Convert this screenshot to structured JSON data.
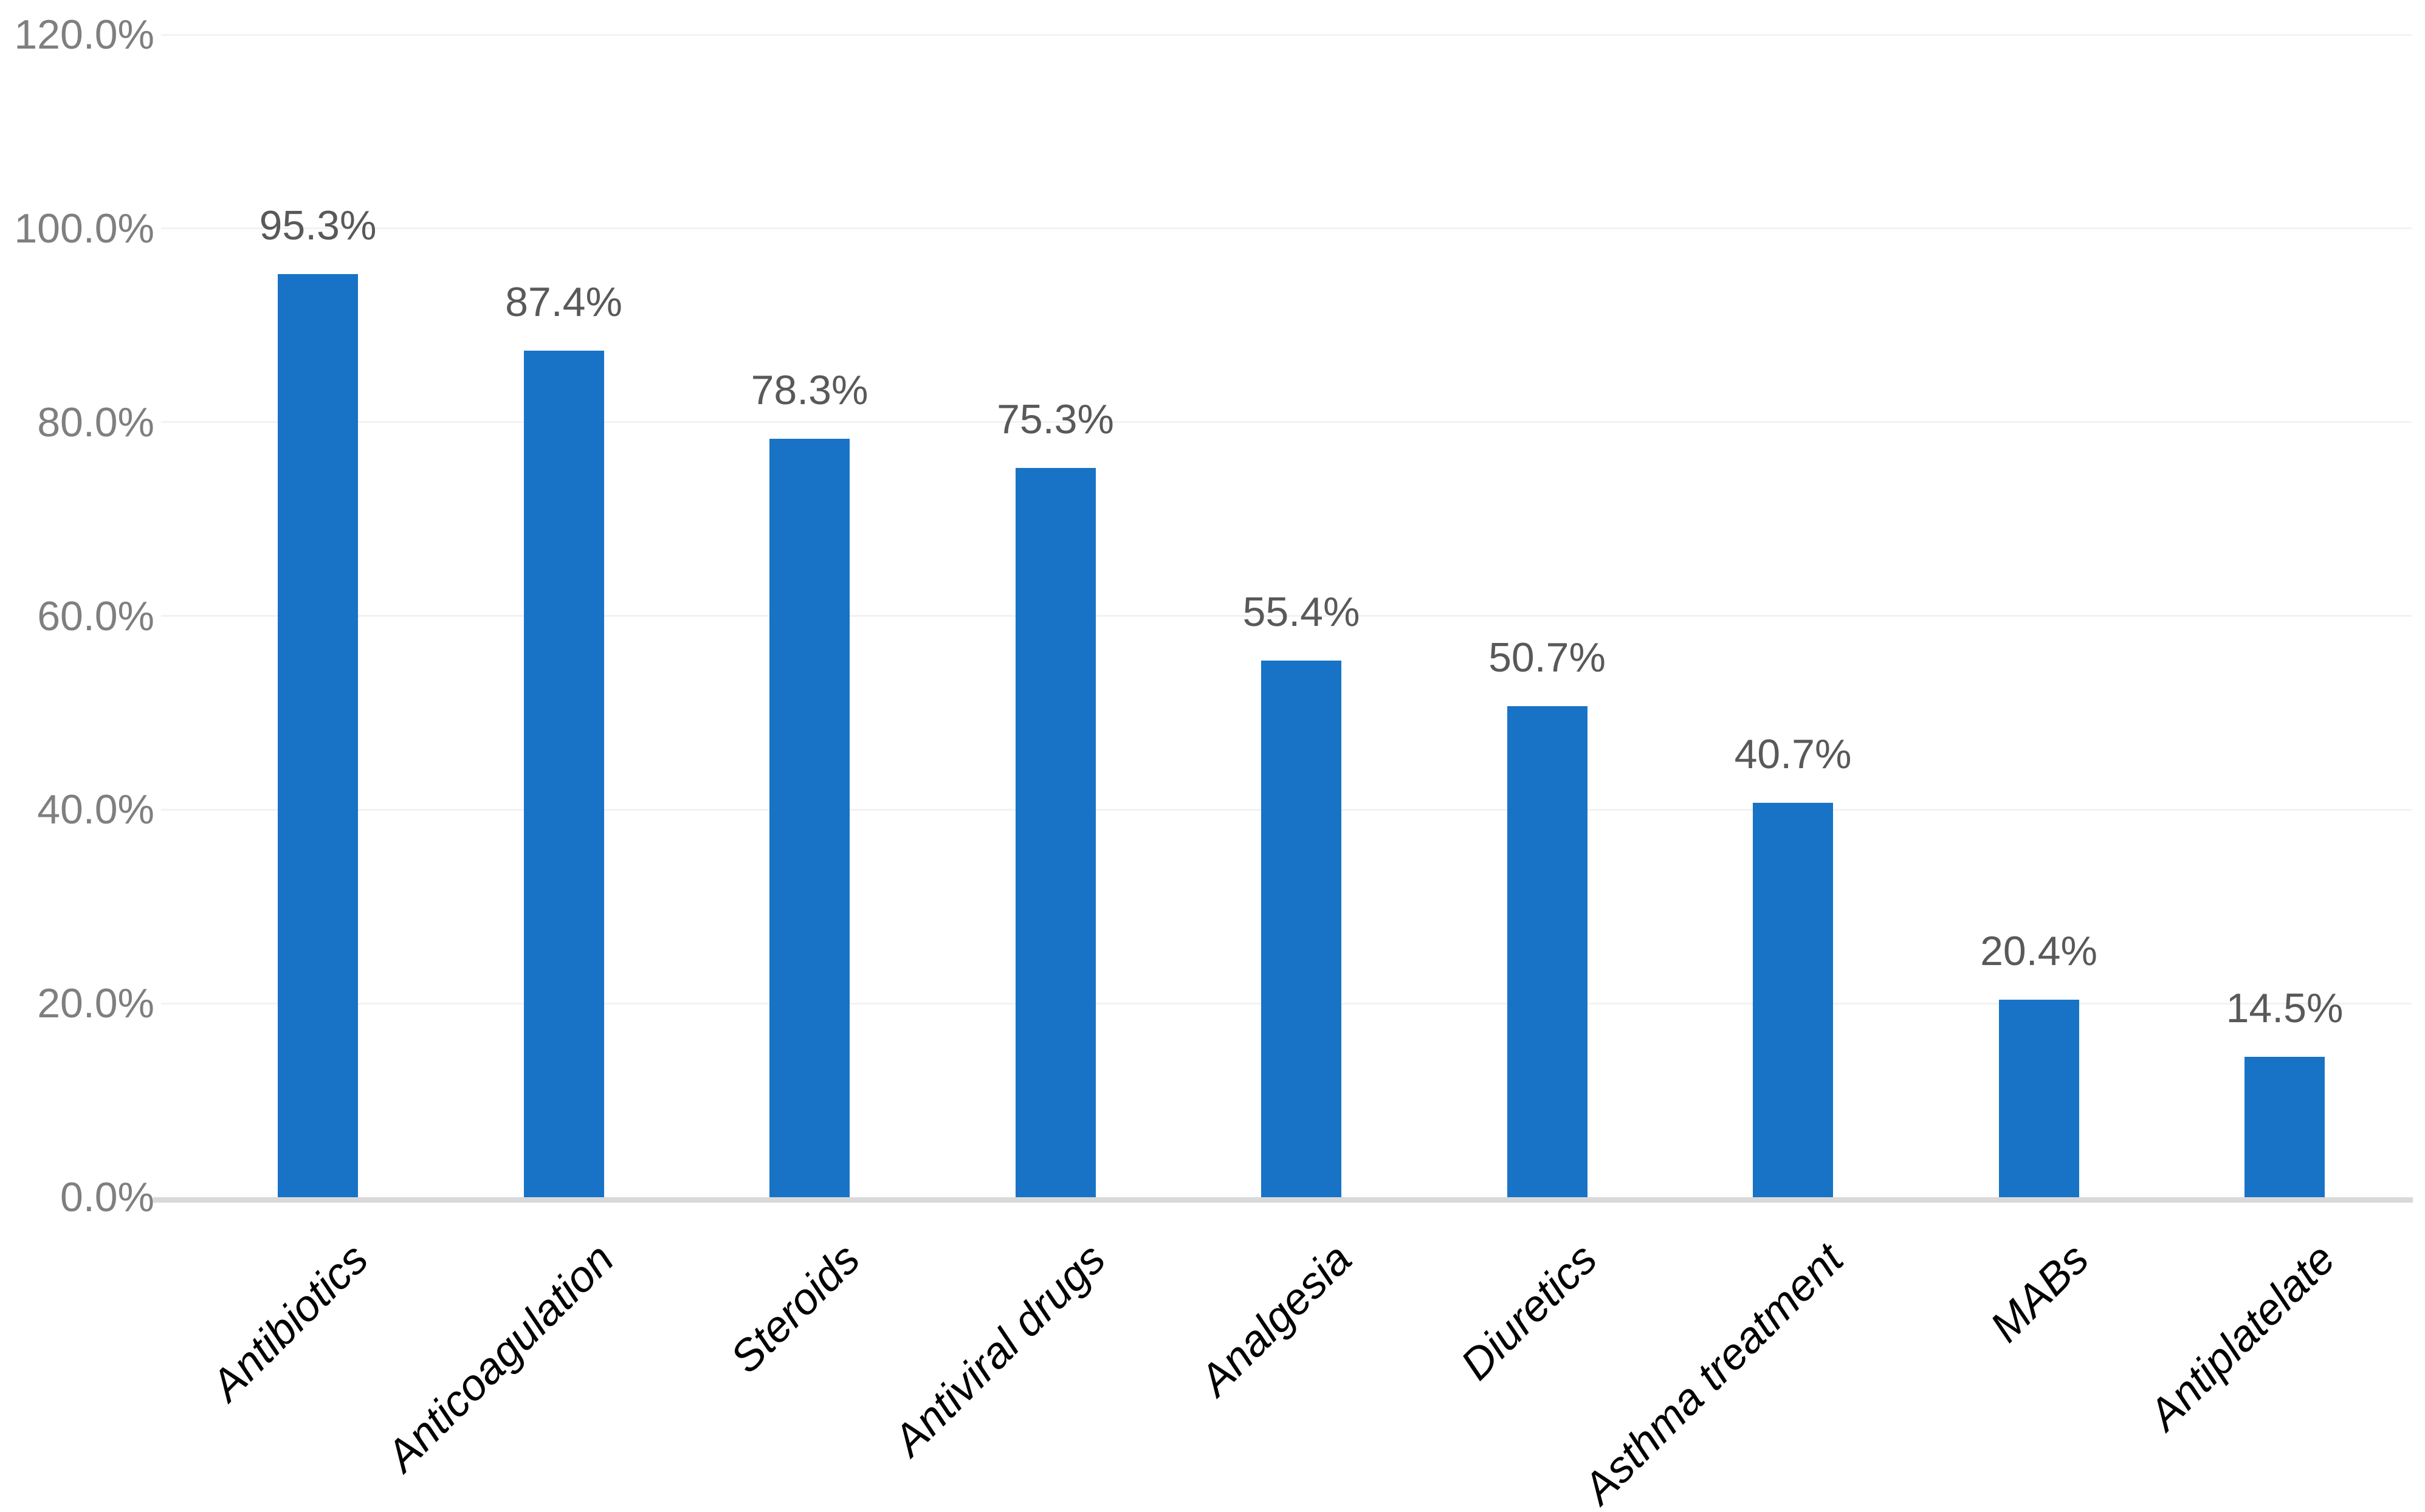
{
  "chart_data": {
    "type": "bar",
    "title": "",
    "xlabel": "",
    "ylabel": "",
    "categories": [
      "Antibiotics",
      "Anticoagulation",
      "Steroids",
      "Antiviral drugs",
      "Analgesia",
      "Diuretics",
      "Asthma treatment",
      "MABs",
      "Antiplatelate"
    ],
    "values": [
      95.3,
      87.4,
      78.3,
      75.3,
      55.4,
      50.7,
      40.7,
      20.4,
      14.5
    ],
    "data_labels": [
      "95.3%",
      "87.4%",
      "78.3%",
      "75.3%",
      "55.4%",
      "50.7%",
      "40.7%",
      "20.4%",
      "14.5%"
    ],
    "y_ticks": [
      {
        "value": 120,
        "label": "120.0%"
      },
      {
        "value": 100,
        "label": "100.0%"
      },
      {
        "value": 80,
        "label": "80.0%"
      },
      {
        "value": 60,
        "label": "60.0%"
      },
      {
        "value": 40,
        "label": "40.0%"
      },
      {
        "value": 20,
        "label": "20.0%"
      },
      {
        "value": 0,
        "label": "0.0%"
      }
    ],
    "ylim": [
      0,
      120
    ],
    "grid": true,
    "legend_position": "none",
    "colors": {
      "bar": "#1873C6",
      "gridline": "#F2F2F2",
      "axis_line": "#D9D9D9",
      "y_tick_label": "#7F7F7F",
      "data_label": "#595959",
      "x_category_label": "#000000"
    }
  }
}
